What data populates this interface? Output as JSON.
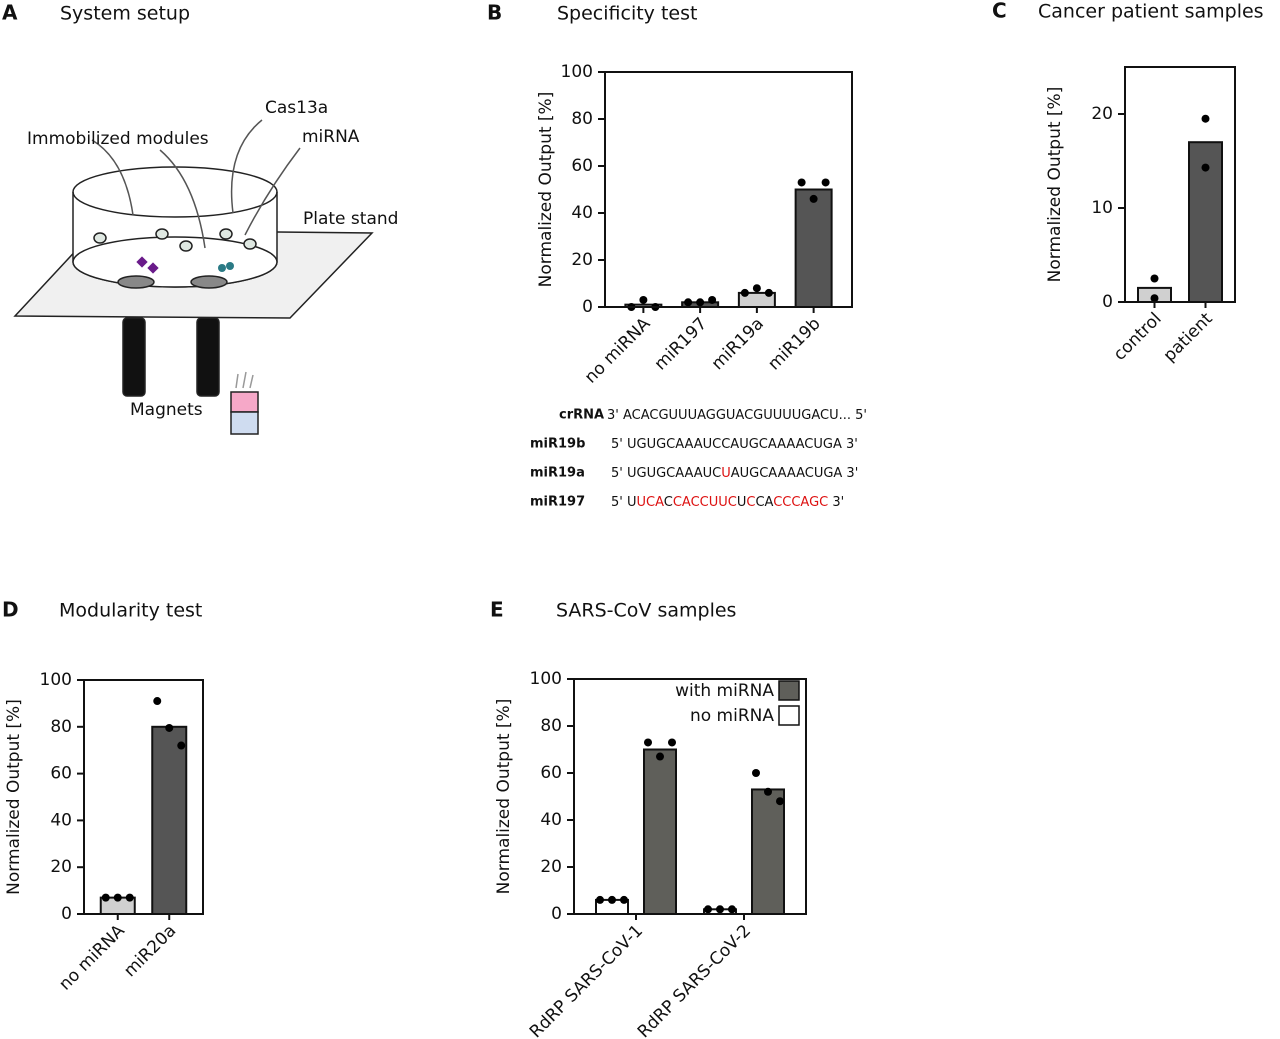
{
  "setup": {
    "panel": "A",
    "title": "System setup",
    "labels": [
      "Immobilized modules",
      "Cas13a",
      "miRNA",
      "Plate stand",
      "Magnets"
    ]
  },
  "sequences": [
    {
      "name": "crRNA",
      "segments": [
        {
          "text": "3' ACACGUUUAGGUACGUUUUGACU... 5'",
          "highlight": false
        }
      ]
    },
    {
      "name": "miR19b",
      "segments": [
        {
          "text": "5' UGUGCAAAUCCAUGCAAAACUGA 3'",
          "highlight": false
        }
      ]
    },
    {
      "name": "miR19a",
      "segments": [
        {
          "text": "5' UGUGCAAAUC",
          "highlight": false
        },
        {
          "text": "U",
          "highlight": true
        },
        {
          "text": "AUGCAAAACUGA 3'",
          "highlight": false
        }
      ]
    },
    {
      "name": "miR197",
      "segments": [
        {
          "text": "5' U",
          "highlight": false
        },
        {
          "text": "UCA",
          "highlight": true
        },
        {
          "text": "C",
          "highlight": false
        },
        {
          "text": "CA",
          "highlight": true
        },
        {
          "text": "CCUUC",
          "highlight": true
        },
        {
          "text": "U",
          "highlight": false
        },
        {
          "text": "C",
          "highlight": true
        },
        {
          "text": "CA",
          "highlight": false
        },
        {
          "text": "CCCAGC",
          "highlight": true
        },
        {
          "text": " 3'",
          "highlight": false
        }
      ]
    }
  ],
  "chart_data": [
    {
      "type": "bar",
      "panel": "B",
      "title": "Specificity test",
      "y_label": "Normalized Output [%]",
      "categories": [
        "no miRNA",
        "miR197",
        "miR19a",
        "miR19b"
      ],
      "values": [
        1,
        2,
        6,
        50
      ],
      "colors": [
        "#d0d0d0",
        "#555555",
        "#d0d0d0",
        "#555555"
      ],
      "points": [
        [
          0,
          3,
          0
        ],
        [
          2,
          2,
          3
        ],
        [
          6,
          8,
          6
        ],
        [
          53,
          46,
          53
        ]
      ],
      "ylim": [
        0,
        100
      ],
      "yticks": [
        0,
        20,
        40,
        60,
        80,
        100
      ]
    },
    {
      "type": "bar",
      "panel": "C",
      "title": "Cancer patient samples",
      "y_label": "Normalized Output [%]",
      "categories": [
        "control",
        "patient"
      ],
      "values": [
        1.5,
        17
      ],
      "colors": [
        "#d0d0d0",
        "#555555"
      ],
      "points": [
        [
          2.5,
          0.4
        ],
        [
          19.5,
          14.3
        ]
      ],
      "ylim": [
        0,
        25
      ],
      "yticks": [
        0,
        10,
        20
      ]
    },
    {
      "type": "bar",
      "panel": "D",
      "title": "Modularity test",
      "y_label": "Normalized Output [%]",
      "categories": [
        "no miRNA",
        "miR20a"
      ],
      "values": [
        7,
        80
      ],
      "colors": [
        "#d0d0d0",
        "#555555"
      ],
      "points": [
        [
          7,
          7,
          7
        ],
        [
          91,
          79.5,
          72
        ]
      ],
      "ylim": [
        0,
        100
      ],
      "yticks": [
        0,
        20,
        40,
        60,
        80,
        100
      ]
    },
    {
      "type": "grouped_bar",
      "panel": "E",
      "title": "SARS-CoV samples",
      "y_label": "Normalized Output [%]",
      "categories": [
        "RdRP SARS-CoV-1",
        "RdRP SARS-CoV-2"
      ],
      "series": [
        {
          "name": "no miRNA",
          "color": "#ffffff",
          "values": [
            6,
            2
          ],
          "points": [
            [
              6,
              6,
              6
            ],
            [
              2,
              2,
              2
            ]
          ]
        },
        {
          "name": "with miRNA",
          "color": "#5f5f5a",
          "values": [
            70,
            53
          ],
          "points": [
            [
              73,
              67,
              73
            ],
            [
              60,
              52,
              48
            ]
          ]
        }
      ],
      "legend_order": [
        1,
        0
      ],
      "legend": "upper right",
      "ylim": [
        0,
        100
      ],
      "yticks": [
        0,
        20,
        40,
        60,
        80,
        100
      ]
    }
  ]
}
